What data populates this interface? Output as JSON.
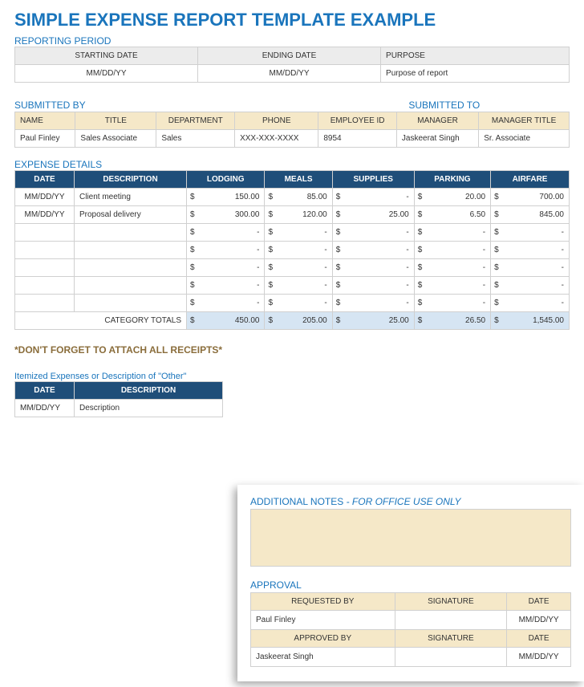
{
  "title": "SIMPLE EXPENSE REPORT TEMPLATE EXAMPLE",
  "colors": {
    "accent_blue": "#1a75bc",
    "header_blue": "#1f4e79",
    "header_cream": "#f5e8c8",
    "header_gray": "#ececec",
    "totals_blue": "#d6e5f3",
    "border": "#d0d0d0",
    "brown_text": "#8a6d3b"
  },
  "reporting_period": {
    "label": "REPORTING PERIOD",
    "columns": [
      "STARTING DATE",
      "ENDING DATE",
      "PURPOSE"
    ],
    "values": [
      "MM/DD/YY",
      "MM/DD/YY",
      "Purpose of report"
    ]
  },
  "submitted": {
    "by_label": "SUBMITTED BY",
    "to_label": "SUBMITTED TO",
    "columns": [
      "NAME",
      "TITLE",
      "DEPARTMENT",
      "PHONE",
      "EMPLOYEE ID",
      "MANAGER",
      "MANAGER TITLE"
    ],
    "values": [
      "Paul Finley",
      "Sales Associate",
      "Sales",
      "XXX-XXX-XXXX",
      "8954",
      "Jaskeerat Singh",
      "Sr. Associate"
    ]
  },
  "expense_details": {
    "label": "EXPENSE DETAILS",
    "columns": [
      "DATE",
      "DESCRIPTION",
      "LODGING",
      "MEALS",
      "SUPPLIES",
      "PARKING",
      "AIRFARE"
    ],
    "currency": "$",
    "rows": [
      {
        "date": "MM/DD/YY",
        "desc": "Client meeting",
        "vals": [
          "150.00",
          "85.00",
          "-",
          "20.00",
          "700.00"
        ]
      },
      {
        "date": "MM/DD/YY",
        "desc": "Proposal delivery",
        "vals": [
          "300.00",
          "120.00",
          "25.00",
          "6.50",
          "845.00"
        ]
      },
      {
        "date": "",
        "desc": "",
        "vals": [
          "-",
          "-",
          "-",
          "-",
          "-"
        ]
      },
      {
        "date": "",
        "desc": "",
        "vals": [
          "-",
          "-",
          "-",
          "-",
          "-"
        ]
      },
      {
        "date": "",
        "desc": "",
        "vals": [
          "-",
          "-",
          "-",
          "-",
          "-"
        ]
      },
      {
        "date": "",
        "desc": "",
        "vals": [
          "-",
          "-",
          "-",
          "-",
          "-"
        ]
      },
      {
        "date": "",
        "desc": "",
        "vals": [
          "-",
          "-",
          "-",
          "-",
          "-"
        ]
      }
    ],
    "totals_label": "CATEGORY TOTALS",
    "totals": [
      "450.00",
      "205.00",
      "25.00",
      "26.50",
      "1,545.00"
    ]
  },
  "receipts_note": "*DON'T FORGET TO ATTACH ALL RECEIPTS*",
  "itemized": {
    "label": "Itemized Expenses or Description of \"Other\"",
    "columns": [
      "DATE",
      "DESCRIPTION"
    ],
    "rows": [
      {
        "date": "MM/DD/YY",
        "desc": "Description"
      }
    ]
  },
  "additional_notes": {
    "label": "ADDITIONAL NOTES",
    "sublabel": "- FOR OFFICE USE ONLY"
  },
  "approval": {
    "label": "APPROVAL",
    "columns1": [
      "REQUESTED BY",
      "SIGNATURE",
      "DATE"
    ],
    "row1": [
      "Paul Finley",
      "",
      "MM/DD/YY"
    ],
    "columns2": [
      "APPROVED BY",
      "SIGNATURE",
      "DATE"
    ],
    "row2": [
      "Jaskeerat Singh",
      "",
      "MM/DD/YY"
    ]
  }
}
